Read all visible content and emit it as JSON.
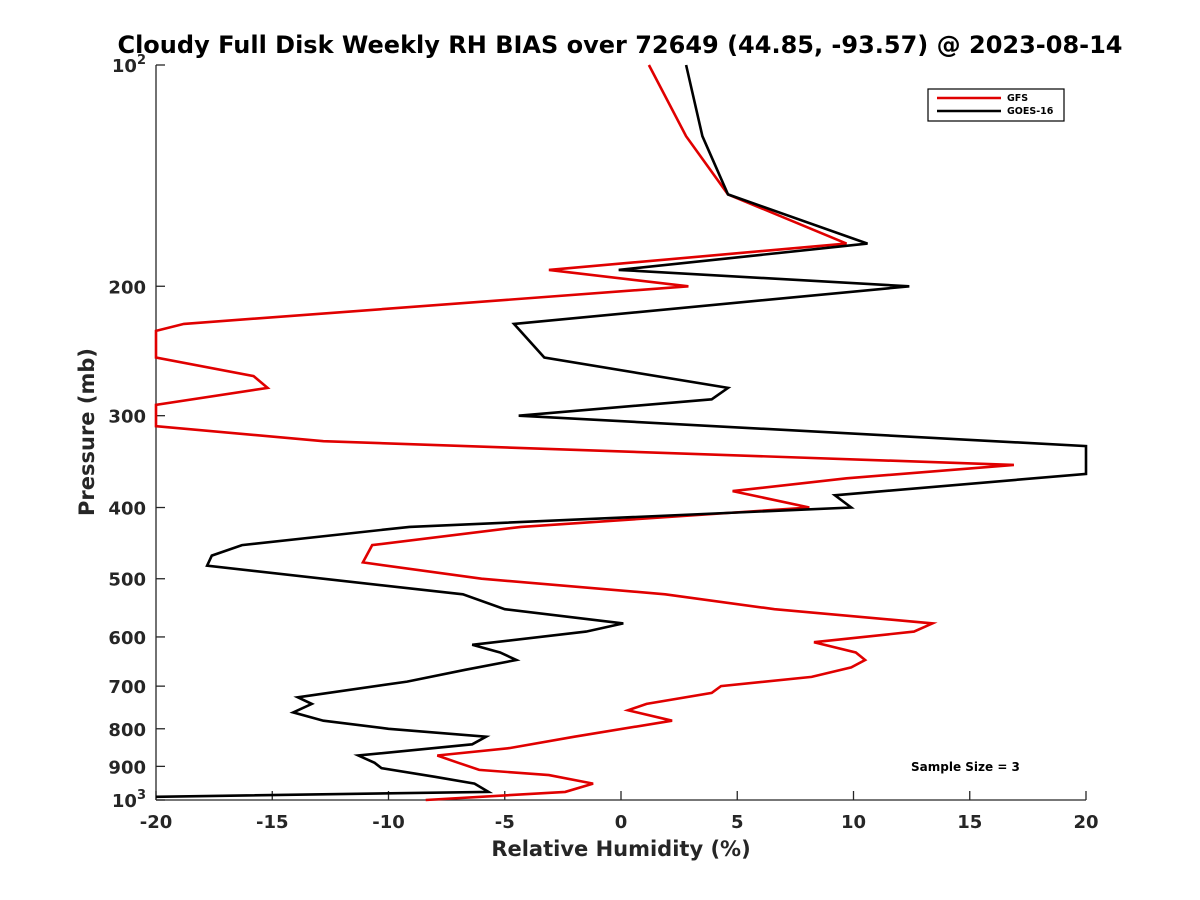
{
  "chart_data": {
    "type": "line",
    "title": "Cloudy Full Disk Weekly RH BIAS over 72649 (44.85, -93.57) @ 2023-08-14",
    "xlabel": "Relative Humidity (%)",
    "ylabel": "Pressure (mb)",
    "xlim": [
      -20,
      20
    ],
    "ylim": [
      100,
      1000
    ],
    "y_scale": "log",
    "y_reversed": true,
    "grid": false,
    "legend_position": "top-right",
    "x_ticks": [
      "-20",
      "-15",
      "-10",
      "-5",
      "0",
      "5",
      "10",
      "15",
      "20"
    ],
    "x_tick_values": [
      -20,
      -15,
      -10,
      -5,
      0,
      5,
      10,
      15,
      20
    ],
    "y_ticks": [
      {
        "value": 100,
        "base": "10",
        "exp": "2"
      },
      {
        "value": 200,
        "label": "200"
      },
      {
        "value": 300,
        "label": "300"
      },
      {
        "value": 400,
        "label": "400"
      },
      {
        "value": 500,
        "label": "500"
      },
      {
        "value": 600,
        "label": "600"
      },
      {
        "value": 700,
        "label": "700"
      },
      {
        "value": 800,
        "label": "800"
      },
      {
        "value": 900,
        "label": "900"
      },
      {
        "value": 1000,
        "base": "10",
        "exp": "3"
      }
    ],
    "series": [
      {
        "name": "GFS",
        "color": "#e00000",
        "points": [
          [
            1.2,
            100
          ],
          [
            2.8,
            125
          ],
          [
            4.6,
            150
          ],
          [
            9.7,
            175
          ],
          [
            -3.1,
            190
          ],
          [
            2.9,
            200
          ],
          [
            -18.8,
            225
          ],
          [
            -20.0,
            230
          ],
          [
            -20.0,
            250
          ],
          [
            -15.8,
            265
          ],
          [
            -15.2,
            275
          ],
          [
            -20.0,
            290
          ],
          [
            -20.0,
            310
          ],
          [
            -12.8,
            325
          ],
          [
            16.9,
            350
          ],
          [
            9.7,
            365
          ],
          [
            4.8,
            380
          ],
          [
            8.1,
            400
          ],
          [
            -4.3,
            425
          ],
          [
            -10.7,
            450
          ],
          [
            -11.1,
            475
          ],
          [
            -6.0,
            500
          ],
          [
            1.9,
            525
          ],
          [
            6.6,
            550
          ],
          [
            13.4,
            575
          ],
          [
            12.6,
            590
          ],
          [
            8.3,
            610
          ],
          [
            10.1,
            630
          ],
          [
            10.5,
            645
          ],
          [
            9.9,
            660
          ],
          [
            8.2,
            680
          ],
          [
            4.3,
            700
          ],
          [
            3.9,
            715
          ],
          [
            1.1,
            740
          ],
          [
            0.3,
            755
          ],
          [
            2.2,
            780
          ],
          [
            -2.0,
            820
          ],
          [
            -4.8,
            850
          ],
          [
            -7.9,
            870
          ],
          [
            -7.0,
            890
          ],
          [
            -6.1,
            910
          ],
          [
            -3.1,
            925
          ],
          [
            -1.2,
            950
          ],
          [
            -2.4,
            975
          ],
          [
            -8.4,
            1000
          ]
        ]
      },
      {
        "name": "GOES-16",
        "color": "#000000",
        "points": [
          [
            2.8,
            100
          ],
          [
            3.5,
            125
          ],
          [
            4.6,
            150
          ],
          [
            10.6,
            175
          ],
          [
            -0.1,
            190
          ],
          [
            12.4,
            200
          ],
          [
            -4.6,
            225
          ],
          [
            -3.3,
            250
          ],
          [
            4.6,
            275
          ],
          [
            3.9,
            285
          ],
          [
            -4.4,
            300
          ],
          [
            20.0,
            330
          ],
          [
            20.0,
            360
          ],
          [
            9.2,
            385
          ],
          [
            9.9,
            400
          ],
          [
            -9.1,
            425
          ],
          [
            -16.3,
            450
          ],
          [
            -17.6,
            465
          ],
          [
            -17.8,
            480
          ],
          [
            -6.8,
            525
          ],
          [
            -5.0,
            550
          ],
          [
            0.1,
            575
          ],
          [
            -1.5,
            590
          ],
          [
            -6.4,
            615
          ],
          [
            -5.2,
            630
          ],
          [
            -4.5,
            645
          ],
          [
            -6.7,
            665
          ],
          [
            -9.2,
            690
          ],
          [
            -13.9,
            725
          ],
          [
            -13.3,
            740
          ],
          [
            -14.1,
            760
          ],
          [
            -12.8,
            780
          ],
          [
            -10.0,
            800
          ],
          [
            -5.8,
            820
          ],
          [
            -6.4,
            840
          ],
          [
            -11.3,
            870
          ],
          [
            -10.6,
            890
          ],
          [
            -10.3,
            905
          ],
          [
            -8.0,
            930
          ],
          [
            -6.3,
            950
          ],
          [
            -5.7,
            975
          ],
          [
            -20.0,
            990
          ]
        ]
      }
    ],
    "annotations": [
      {
        "text": "Sample Size = 3"
      }
    ]
  }
}
